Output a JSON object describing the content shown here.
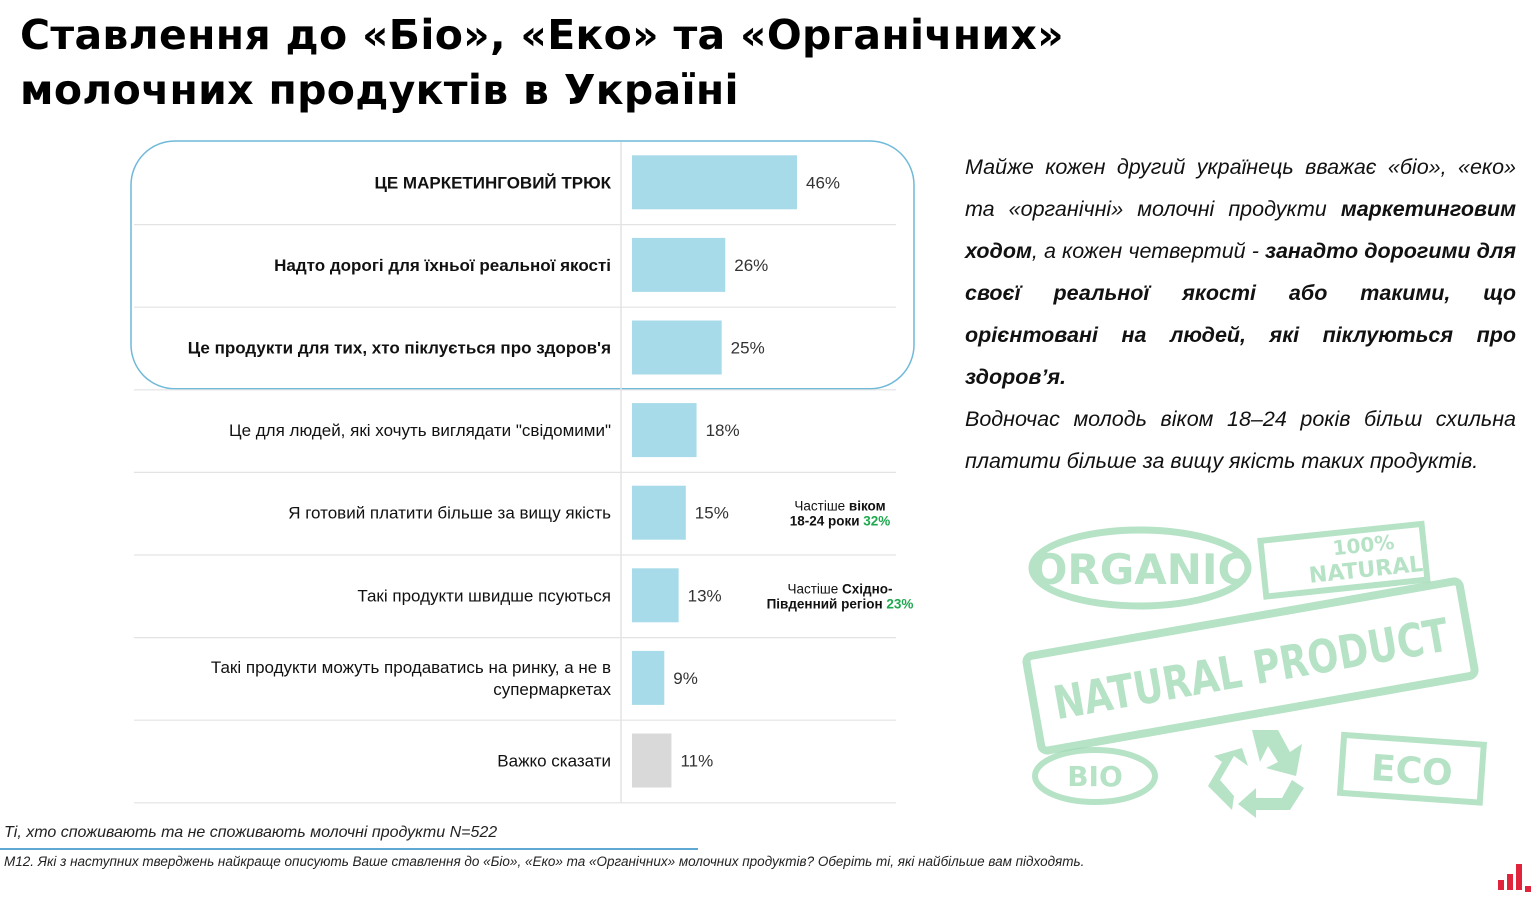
{
  "title": {
    "line1": "Ставлення до «Біо», «Еко» та «Органічних»",
    "line2": "молочних продуктів в Україні"
  },
  "chart_data": {
    "type": "bar",
    "orientation": "horizontal",
    "unit": "%",
    "categories": [
      [
        "ЦЕ МАРКЕТИНГОВИЙ ТРЮК"
      ],
      [
        "Надто дорогі для їхньої реальної якості"
      ],
      [
        "Це продукти для тих, хто піклується про здоров'я"
      ],
      [
        "Це для людей, які хочуть виглядати \"свідомими\""
      ],
      [
        "Я готовий платити більше за вищу якість"
      ],
      [
        "Такі продукти швидше псуються"
      ],
      [
        "Такі продукти можуть продаватись на ринку, а не в",
        "супермаркетах"
      ],
      [
        "Важко сказати"
      ]
    ],
    "values": [
      46,
      26,
      25,
      18,
      15,
      13,
      9,
      11
    ],
    "value_labels": [
      "46%",
      "26%",
      "25%",
      "18%",
      "15%",
      "13%",
      "9%",
      "11%"
    ],
    "bold_categories": [
      true,
      true,
      true,
      false,
      false,
      false,
      false,
      false
    ],
    "highlighted_rows": [
      0,
      1,
      2
    ],
    "colors": {
      "bar": "#a8dbe9",
      "bar_dont_know": "#d9d9d9",
      "highlight_border": "#6fb9d9",
      "accent_green": "#1fa84f"
    },
    "annotations": [
      {
        "row": 4,
        "line1": [
          [
            "Частіше ",
            ""
          ],
          [
            "віком",
            "b"
          ]
        ],
        "line2": [
          [
            "18-24 роки",
            "b"
          ],
          [
            "  32%",
            "g"
          ]
        ]
      },
      {
        "row": 5,
        "line1": [
          [
            "Частіше ",
            ""
          ],
          [
            "Східно-",
            "b"
          ]
        ],
        "line2": [
          [
            "Південний регіон",
            "b"
          ],
          [
            " 23%",
            "g"
          ]
        ]
      }
    ]
  },
  "commentary": {
    "p1_part1": "Майже кожен другий українець вважає «біо», «еко» та «органічні» молочні продукти ",
    "p1_bold1": "маркетинговим ходом",
    "p1_part2": ", а кожен четвертий - ",
    "p1_bold2": "занадто дорогими для своєї реальної якості або такими, що орієнтовані на людей, які піклуються про здоров’я.",
    "p2": "Водночас молодь віком 18–24 років більш схильна платити більше за вищу якість таких продуктів."
  },
  "stamps": {
    "organic": "ORGANIC",
    "natural_top": "100%",
    "natural_bottom": "NATURAL",
    "natural_product": "NATURAL PRODUCT",
    "bio": "BIO",
    "eco": "ECO",
    "color": "#9ed9b3"
  },
  "footer": {
    "base": "Ті, хто споживають та не споживають молочні продукти N=522",
    "question": "М12. Які з наступних тверджень найкраще описують Ваше ставлення до «Біо», «Еко» та «Органічних» молочних продуктів? Оберіть ті, які найбільше вам підходять.",
    "rule_color": "#5fa8d3"
  },
  "logo": {
    "color": "#e0243c",
    "icon": "bar-logo-icon"
  }
}
